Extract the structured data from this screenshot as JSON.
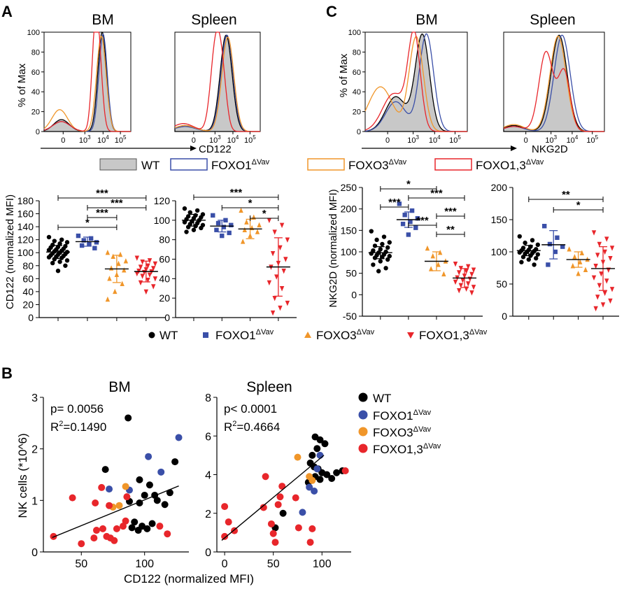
{
  "panels": {
    "A": "A",
    "B": "B",
    "C": "C"
  },
  "colors": {
    "WT": "#000000",
    "FOXO1": "#3a4fa8",
    "FOXO3": "#f0962a",
    "FOXO13": "#e8262b",
    "WT_fill": "#c8c8c8"
  },
  "legend": {
    "wt": "WT",
    "foxo1": "FOXO1",
    "foxo3": "FOXO3",
    "foxo13": "FOXO1,3",
    "sup": "ΔVav"
  },
  "hist": {
    "ylabel": "% of Max",
    "yticks": [
      "0",
      "20",
      "40",
      "60",
      "80",
      "100"
    ],
    "xticks": [
      "0",
      "10",
      "10",
      "10"
    ],
    "xtick_sup": [
      "",
      "3",
      "4",
      "5"
    ],
    "A": {
      "bm_title": "BM",
      "spleen_title": "Spleen",
      "xlabel": "CD122"
    },
    "C": {
      "bm_title": "BM",
      "spleen_title": "Spleen",
      "xlabel": "NKG2D"
    }
  },
  "chart_data": [
    {
      "id": "A_scatter_BM",
      "type": "scatter",
      "ylabel": "CD122 (normalized MFI)",
      "ylim": [
        0,
        180
      ],
      "yticks": [
        "0",
        "20",
        "40",
        "60",
        "80",
        "100",
        "120",
        "140",
        "160",
        "180"
      ],
      "groups": [
        {
          "name": "WT",
          "mean": 101,
          "sd": 10,
          "values": [
            124,
            120,
            118,
            116,
            114,
            112,
            110,
            109,
            108,
            106,
            105,
            104,
            103,
            102,
            101,
            100,
            99,
            98,
            97,
            96,
            95,
            94,
            93,
            92,
            90,
            88,
            86,
            84,
            80,
            72
          ]
        },
        {
          "name": "FOXO1",
          "mean": 117,
          "sd": 7,
          "values": [
            126,
            122,
            119,
            116,
            114,
            111,
            107
          ]
        },
        {
          "name": "FOXO3",
          "mean": 75,
          "sd": 21,
          "values": [
            100,
            97,
            94,
            87,
            83,
            76,
            73,
            66,
            60,
            52,
            40,
            28
          ]
        },
        {
          "name": "FOXO1,3",
          "mean": 71,
          "sd": 16,
          "values": [
            92,
            88,
            86,
            83,
            80,
            78,
            76,
            74,
            72,
            71,
            70,
            68,
            66,
            64,
            60,
            58,
            54,
            48,
            40
          ]
        }
      ],
      "significance": [
        {
          "from": 0,
          "to": 3,
          "label": "***"
        },
        {
          "from": 1,
          "to": 3,
          "label": "***"
        },
        {
          "from": 1,
          "to": 2,
          "label": "***"
        },
        {
          "from": 0,
          "to": 2,
          "label": "*"
        }
      ]
    },
    {
      "id": "A_scatter_Spleen",
      "type": "scatter",
      "ylim": [
        0,
        120
      ],
      "yticks": [
        "0",
        "20",
        "40",
        "60",
        "80",
        "100",
        "120"
      ],
      "groups": [
        {
          "name": "WT",
          "mean": 100,
          "sd": 6,
          "values": [
            112,
            110,
            108,
            106,
            105,
            104,
            103,
            102,
            101,
            100,
            99,
            98,
            97,
            96,
            95,
            94,
            93,
            92,
            90,
            88
          ]
        },
        {
          "name": "FOXO1",
          "mean": 94,
          "sd": 6,
          "values": [
            105,
            100,
            97,
            95,
            93,
            90,
            87,
            84
          ]
        },
        {
          "name": "FOXO3",
          "mean": 91,
          "sd": 10,
          "values": [
            110,
            103,
            98,
            95,
            92,
            90,
            88,
            84,
            78
          ]
        },
        {
          "name": "FOXO1,3",
          "mean": 52,
          "sd": 30,
          "values": [
            100,
            95,
            88,
            80,
            72,
            66,
            60,
            56,
            52,
            48,
            42,
            36,
            30,
            20,
            15,
            10,
            5
          ]
        }
      ],
      "significance": [
        {
          "from": 0,
          "to": 3,
          "label": "***"
        },
        {
          "from": 1,
          "to": 3,
          "label": "*"
        },
        {
          "from": 2,
          "to": 3,
          "label": "*"
        }
      ]
    },
    {
      "id": "C_scatter_BM",
      "type": "scatter",
      "ylabel": "NKG2D (normalized MFI)",
      "ylim": [
        -50,
        250
      ],
      "yticks": [
        "-50",
        "0",
        "50",
        "100",
        "150",
        "200",
        "250"
      ],
      "groups": [
        {
          "name": "WT",
          "mean": 98,
          "sd": 14,
          "values": [
            148,
            135,
            128,
            122,
            118,
            114,
            110,
            106,
            103,
            100,
            98,
            96,
            94,
            92,
            90,
            88,
            86,
            82,
            78,
            70,
            62,
            55
          ]
        },
        {
          "name": "FOXO1",
          "mean": 175,
          "sd": 18,
          "values": [
            212,
            196,
            186,
            178,
            170,
            165,
            156,
            140
          ]
        },
        {
          "name": "FOXO3",
          "mean": 78,
          "sd": 22,
          "values": [
            108,
            98,
            90,
            78,
            70,
            60,
            48
          ]
        },
        {
          "name": "FOXO1,3",
          "mean": 39,
          "sd": 22,
          "values": [
            72,
            66,
            62,
            58,
            55,
            52,
            48,
            44,
            40,
            37,
            34,
            30,
            26,
            22,
            18,
            14,
            10,
            5
          ]
        }
      ],
      "significance": [
        {
          "from": 0,
          "to": 2,
          "label": "*"
        },
        {
          "from": 1,
          "to": 3,
          "label": "***"
        },
        {
          "from": 0,
          "to": 1,
          "label": "***"
        },
        {
          "from": 2,
          "to": 3,
          "label": "***"
        },
        {
          "from": 1,
          "to": 2,
          "label": "***"
        },
        {
          "from": 2,
          "to": 3,
          "label": "**"
        }
      ]
    },
    {
      "id": "C_scatter_Spleen",
      "type": "scatter",
      "ylim": [
        0,
        200
      ],
      "yticks": [
        "0",
        "50",
        "100",
        "150",
        "200"
      ],
      "groups": [
        {
          "name": "WT",
          "mean": 102,
          "sd": 8,
          "values": [
            124,
            118,
            114,
            111,
            108,
            106,
            104,
            103,
            102,
            101,
            100,
            99,
            98,
            97,
            96,
            94,
            92,
            90,
            88,
            84,
            80
          ]
        },
        {
          "name": "FOXO1",
          "mean": 111,
          "sd": 22,
          "values": [
            140,
            122,
            112,
            108,
            100,
            80
          ]
        },
        {
          "name": "FOXO3",
          "mean": 88,
          "sd": 12,
          "values": [
            104,
            98,
            92,
            88,
            84,
            78,
            72,
            66
          ]
        },
        {
          "name": "FOXO1,3",
          "mean": 74,
          "sd": 34,
          "values": [
            130,
            120,
            112,
            106,
            100,
            95,
            90,
            84,
            78,
            72,
            66,
            60,
            55,
            48,
            42,
            36,
            30,
            24,
            18,
            12
          ]
        }
      ],
      "significance": [
        {
          "from": 0,
          "to": 3,
          "label": "**"
        },
        {
          "from": 1,
          "to": 3,
          "label": "*"
        }
      ]
    },
    {
      "id": "B_corr_BM",
      "type": "scatter",
      "title": "BM",
      "xlabel": "CD122 (normalized MFI)",
      "ylabel": "NK cells (*10^6)",
      "xlim": [
        20,
        135
      ],
      "ylim": [
        0,
        3
      ],
      "xticks": [
        "50",
        "100"
      ],
      "yticks": [
        "0",
        "1",
        "2",
        "3"
      ],
      "stats": {
        "p": "p= 0.0056",
        "r2_prefix": "R",
        "r2_sup": "2",
        "r2_val": "=0.1490"
      },
      "fit": {
        "x0": 27,
        "y0": 0.28,
        "x1": 127,
        "y1": 1.28
      },
      "points": [
        {
          "g": "WT",
          "x": 87,
          "y": 2.6
        },
        {
          "g": "WT",
          "x": 124,
          "y": 1.75
        },
        {
          "g": "WT",
          "x": 69,
          "y": 1.6
        },
        {
          "g": "WT",
          "x": 96,
          "y": 1.4
        },
        {
          "g": "WT",
          "x": 104,
          "y": 1.3
        },
        {
          "g": "WT",
          "x": 100,
          "y": 1.1
        },
        {
          "g": "WT",
          "x": 108,
          "y": 1.1
        },
        {
          "g": "WT",
          "x": 88,
          "y": 0.98
        },
        {
          "g": "WT",
          "x": 96,
          "y": 0.95
        },
        {
          "g": "WT",
          "x": 110,
          "y": 1.0
        },
        {
          "g": "WT",
          "x": 116,
          "y": 0.92
        },
        {
          "g": "WT",
          "x": 92,
          "y": 0.58
        },
        {
          "g": "WT",
          "x": 98,
          "y": 0.5
        },
        {
          "g": "WT",
          "x": 102,
          "y": 0.45
        },
        {
          "g": "WT",
          "x": 95,
          "y": 0.42
        },
        {
          "g": "WT",
          "x": 106,
          "y": 0.55
        },
        {
          "g": "WT",
          "x": 90,
          "y": 0.47
        },
        {
          "g": "WT",
          "x": 120,
          "y": 1.15
        },
        {
          "g": "FOXO1",
          "x": 127,
          "y": 2.22
        },
        {
          "g": "FOXO1",
          "x": 103,
          "y": 1.85
        },
        {
          "g": "FOXO1",
          "x": 113,
          "y": 1.55
        },
        {
          "g": "FOXO1",
          "x": 72,
          "y": 1.22
        },
        {
          "g": "FOXO1",
          "x": 88,
          "y": 1.2
        },
        {
          "g": "FOXO3",
          "x": 85,
          "y": 1.27
        },
        {
          "g": "FOXO3",
          "x": 80,
          "y": 0.9
        },
        {
          "g": "FOXO3",
          "x": 75,
          "y": 0.87
        },
        {
          "g": "FOXO1,3",
          "x": 28,
          "y": 0.3
        },
        {
          "g": "FOXO1,3",
          "x": 43,
          "y": 1.05
        },
        {
          "g": "FOXO1,3",
          "x": 50,
          "y": 0.16
        },
        {
          "g": "FOXO1,3",
          "x": 61,
          "y": 0.95
        },
        {
          "g": "FOXO1,3",
          "x": 66,
          "y": 1.25
        },
        {
          "g": "FOXO1,3",
          "x": 67,
          "y": 0.45
        },
        {
          "g": "FOXO1,3",
          "x": 70,
          "y": 0.3
        },
        {
          "g": "FOXO1,3",
          "x": 73,
          "y": 0.27
        },
        {
          "g": "FOXO1,3",
          "x": 76,
          "y": 0.22
        },
        {
          "g": "FOXO1,3",
          "x": 62,
          "y": 0.42
        },
        {
          "g": "FOXO1,3",
          "x": 78,
          "y": 0.45
        },
        {
          "g": "FOXO1,3",
          "x": 83,
          "y": 0.5
        },
        {
          "g": "FOXO1,3",
          "x": 85,
          "y": 0.6
        },
        {
          "g": "FOXO1,3",
          "x": 72,
          "y": 0.9
        },
        {
          "g": "FOXO1,3",
          "x": 86,
          "y": 1.07
        },
        {
          "g": "FOXO1,3",
          "x": 112,
          "y": 0.5
        },
        {
          "g": "FOXO1,3",
          "x": 118,
          "y": 0.35
        },
        {
          "g": "FOXO1,3",
          "x": 60,
          "y": 0.27
        }
      ]
    },
    {
      "id": "B_corr_Spleen",
      "type": "scatter",
      "title": "Spleen",
      "xlim": [
        -8,
        130
      ],
      "ylim": [
        0,
        8
      ],
      "xticks": [
        "0",
        "50",
        "100"
      ],
      "yticks": [
        "0",
        "2",
        "4",
        "6",
        "8"
      ],
      "stats": {
        "p": "p< 0.0001",
        "r2_prefix": "R",
        "r2_sup": "2",
        "r2_val": "=0.4664"
      },
      "fit": {
        "x0": -3,
        "y0": 0.6,
        "x1": 102,
        "y1": 5.0
      },
      "points": [
        {
          "g": "WT",
          "x": 93,
          "y": 5.95
        },
        {
          "g": "WT",
          "x": 98,
          "y": 5.8
        },
        {
          "g": "WT",
          "x": 103,
          "y": 5.6
        },
        {
          "g": "WT",
          "x": 95,
          "y": 5.35
        },
        {
          "g": "WT",
          "x": 90,
          "y": 5.0
        },
        {
          "g": "WT",
          "x": 88,
          "y": 4.6
        },
        {
          "g": "WT",
          "x": 92,
          "y": 4.4
        },
        {
          "g": "WT",
          "x": 96,
          "y": 4.3
        },
        {
          "g": "WT",
          "x": 100,
          "y": 4.1
        },
        {
          "g": "WT",
          "x": 105,
          "y": 4.0
        },
        {
          "g": "WT",
          "x": 110,
          "y": 3.8
        },
        {
          "g": "WT",
          "x": 115,
          "y": 4.1
        },
        {
          "g": "WT",
          "x": 121,
          "y": 4.2
        },
        {
          "g": "WT",
          "x": 93,
          "y": 3.9
        },
        {
          "g": "WT",
          "x": 98,
          "y": 3.75
        },
        {
          "g": "WT",
          "x": 86,
          "y": 3.6
        },
        {
          "g": "WT",
          "x": 60,
          "y": 2.0
        },
        {
          "g": "WT",
          "x": 52,
          "y": 1.25
        },
        {
          "g": "FOXO1",
          "x": 98,
          "y": 5.0
        },
        {
          "g": "FOXO1",
          "x": 95,
          "y": 4.3
        },
        {
          "g": "FOXO1",
          "x": 87,
          "y": 3.35
        },
        {
          "g": "FOXO1",
          "x": 92,
          "y": 3.15
        },
        {
          "g": "FOXO1",
          "x": 80,
          "y": 2.05
        },
        {
          "g": "FOXO3",
          "x": 75,
          "y": 4.9
        },
        {
          "g": "FOXO3",
          "x": 87,
          "y": 3.9
        },
        {
          "g": "FOXO3",
          "x": 90,
          "y": 3.7
        },
        {
          "g": "FOXO1,3",
          "x": 0,
          "y": 2.35
        },
        {
          "g": "FOXO1,3",
          "x": 0,
          "y": 0.8
        },
        {
          "g": "FOXO1,3",
          "x": 4,
          "y": 1.55
        },
        {
          "g": "FOXO1,3",
          "x": 10,
          "y": 1.1
        },
        {
          "g": "FOXO1,3",
          "x": 40,
          "y": 2.3
        },
        {
          "g": "FOXO1,3",
          "x": 42,
          "y": 3.9
        },
        {
          "g": "FOXO1,3",
          "x": 48,
          "y": 1.45
        },
        {
          "g": "FOXO1,3",
          "x": 50,
          "y": 0.95
        },
        {
          "g": "FOXO1,3",
          "x": 52,
          "y": 0.5
        },
        {
          "g": "FOXO1,3",
          "x": 55,
          "y": 2.45
        },
        {
          "g": "FOXO1,3",
          "x": 57,
          "y": 2.85
        },
        {
          "g": "FOXO1,3",
          "x": 59,
          "y": 3.4
        },
        {
          "g": "FOXO1,3",
          "x": 73,
          "y": 2.8
        },
        {
          "g": "FOXO1,3",
          "x": 76,
          "y": 1.25
        },
        {
          "g": "FOXO1,3",
          "x": 90,
          "y": 1.2
        },
        {
          "g": "FOXO1,3",
          "x": 88,
          "y": 0.5
        },
        {
          "g": "FOXO1,3",
          "x": 124,
          "y": 4.2
        }
      ]
    }
  ]
}
